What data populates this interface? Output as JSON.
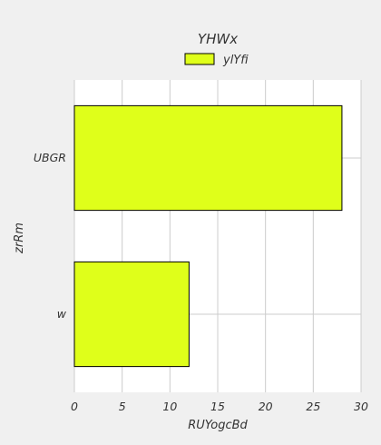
{
  "chart_data": {
    "type": "bar",
    "orientation": "horizontal",
    "title": "YHWx",
    "xlabel": "RUYogcBd",
    "ylabel": "zrRm",
    "categories": [
      "UBGR",
      "w"
    ],
    "series": [
      {
        "name": "ylYfi",
        "values": [
          28,
          12
        ],
        "color": "#dfff1a"
      }
    ],
    "xlim": [
      0,
      30
    ],
    "xticks": [
      0,
      5,
      10,
      15,
      20,
      25,
      30
    ],
    "grid": true,
    "legend_position": "top-center",
    "colors": {
      "background": "#f0f0f0",
      "plot_background": "#ffffff",
      "grid": "#cccccc",
      "bar_edge": "#000000"
    }
  }
}
